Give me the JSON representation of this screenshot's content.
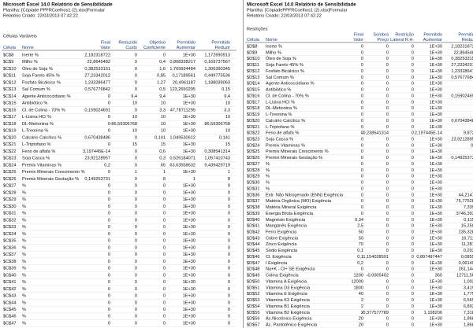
{
  "left": {
    "header": [
      "Microsoft Excel 14.0 Relatório de Sensibilidade",
      "Planilha: [Cópiade PPFRCoelhos1 (2).xlsx]Formular",
      "Relatório Criado: 22/03/2013 07:42:22"
    ],
    "section": "Células Variáveis",
    "columns": [
      "Célula",
      "Nome",
      [
        "Final",
        "Valor"
      ],
      [
        "Reduzido",
        "Custo"
      ],
      [
        "Objetivo",
        "Coeficiente"
      ],
      [
        "Permitido",
        "Aumentar"
      ],
      [
        "Permitido",
        "Reduzir"
      ]
    ],
    "rows": [
      [
        "$C$8",
        "Inerte %",
        "2,182318722",
        "0",
        "0",
        "1E+30",
        "1,172690913"
      ],
      [
        "$C$9",
        "Milho %",
        "22,8645482",
        "0",
        "0,4",
        "0,808338217",
        "0,169737567"
      ],
      [
        "$C$10",
        "Óleo de Soja %",
        "0,382533151",
        "0",
        "1,6",
        "1,769934484",
        "1,306390345"
      ],
      [
        "$C$11",
        "Soja Farelo 45% %",
        "27,23342012",
        "0",
        "0,85",
        "0,17189561",
        "0,449775536"
      ],
      [
        "$C$12",
        "Fosfato Bicálcico %",
        "1,233286477",
        "0",
        "1,27",
        "20,4961187",
        "1,188039063"
      ],
      [
        "$C$13",
        "Sal Comum %",
        "0,576776842",
        "0",
        "0,5",
        "123,2650295",
        "0,15"
      ],
      [
        "$C$14",
        "Agente Anticoccidiano %",
        "0",
        "9,4",
        "9,4",
        "1E+30",
        "9,4"
      ],
      [
        "$C$15",
        "Antibiótico %",
        "0",
        "10",
        "10",
        "1E+30",
        "10"
      ],
      [
        "$C$16",
        "Cl. de Colina - 70% %",
        "0,159024691",
        "0",
        "3,3",
        "47,78711295",
        "3,3"
      ],
      [
        "$C$17",
        "L-Lisina HCl %",
        "0",
        "10",
        "10",
        "1E+30",
        "10"
      ],
      [
        "$C$18",
        "DL-Metionina %",
        "0",
        "-86,59306768",
        "10",
        "1E+30",
        "86,59306768"
      ],
      [
        "$C$19",
        "L-Treonina %",
        "0",
        "10",
        "10",
        "1E+30",
        "10"
      ],
      [
        "$C$20",
        "Calcário Calcítico %",
        "0,670438486",
        "0",
        "0,141",
        "1,049530612",
        "0,141"
      ],
      [
        "$C$21",
        "L-Triptofano %",
        "0",
        "15",
        "15",
        "1E+30",
        "15"
      ],
      [
        "$C$22",
        "Feno de alfafa %",
        "3,197445E-14",
        "0",
        "0,6",
        "1E+30",
        "0,308541314"
      ],
      [
        "$C$23",
        "Soja Casca %",
        "23,92128957",
        "0",
        "0,3",
        "0,526184071",
        "1,057410743"
      ],
      [
        "$C$24",
        "Premix Vitaminas %",
        "0,2",
        "0",
        "65",
        "63,63558632",
        "9,439429719"
      ],
      [
        "$C$25",
        "Premix Minerais Crescimento %",
        "0",
        "1",
        "1",
        "1E+30",
        "1"
      ],
      [
        "$C$26",
        "Premix Minerais Gestação %",
        "0,149253731",
        "0",
        "8",
        "1",
        "8"
      ],
      [
        "$C$27",
        "%",
        "0",
        "0",
        "0",
        "1E+30",
        "0"
      ],
      [
        "$C$28",
        "%",
        "0",
        "0",
        "0",
        "1E+30",
        "0"
      ],
      [
        "$C$29",
        "%",
        "0",
        "0",
        "0",
        "1E+30",
        "0"
      ],
      [
        "$C$30",
        "%",
        "0",
        "0",
        "0",
        "1E+30",
        "0"
      ],
      [
        "$C$31",
        "%",
        "0",
        "0",
        "0",
        "1E+30",
        "0"
      ],
      [
        "$C$32",
        "%",
        "0",
        "0",
        "0",
        "1E+30",
        "0"
      ],
      [
        "$C$33",
        "%",
        "0",
        "0",
        "0",
        "1E+30",
        "0"
      ],
      [
        "$C$34",
        "%",
        "0",
        "0",
        "0",
        "1E+30",
        "0"
      ],
      [
        "$C$35",
        "%",
        "0",
        "0",
        "0",
        "1E+30",
        "0"
      ],
      [
        "$C$36",
        "%",
        "0",
        "0",
        "0",
        "1E+30",
        "0"
      ],
      [
        "$C$37",
        "%",
        "0",
        "0",
        "0",
        "1E+30",
        "0"
      ],
      [
        "$C$38",
        "%",
        "0",
        "0",
        "0",
        "1E+30",
        "0"
      ],
      [
        "$C$39",
        "%",
        "0",
        "0",
        "0",
        "1E+30",
        "0"
      ],
      [
        "$C$40",
        "%",
        "0",
        "0",
        "0",
        "1E+30",
        "0"
      ],
      [
        "$C$41",
        "%",
        "0",
        "0",
        "0",
        "1E+30",
        "0"
      ],
      [
        "$C$42",
        "%",
        "0",
        "0",
        "0",
        "1E+30",
        "0"
      ],
      [
        "$C$43",
        "%",
        "0",
        "0",
        "0",
        "1E+30",
        "0"
      ],
      [
        "$C$44",
        "%",
        "0",
        "0",
        "0",
        "1E+30",
        "0"
      ],
      [
        "$C$45",
        "%",
        "0",
        "0",
        "0",
        "1E+30",
        "0"
      ],
      [
        "$C$46",
        "%",
        "0",
        "0",
        "0",
        "1E+30",
        "0"
      ],
      [
        "$C$47",
        "%",
        "0",
        "0",
        "0",
        "1E+30",
        "0"
      ]
    ]
  },
  "right": {
    "header": [
      "Microsoft Excel 14.0 Relatório de Sensibilidade",
      "Planilha: [CópiadePPFRCoelhos1 (2).xlsx]Formular",
      "Relatório Criado: 22/03/2013 07:42:22"
    ],
    "section": "Restrições",
    "columns": [
      "Célula",
      "Nome",
      [
        "Final",
        "Valor"
      ],
      [
        "Sombra",
        "Preço"
      ],
      [
        "Restrição",
        "Lateral R.H."
      ],
      [
        "Permitido",
        "Aumentar"
      ],
      [
        "Permitido",
        "Reduzir"
      ]
    ],
    "rows": [
      [
        "$D$8",
        "Inerte %",
        "0",
        "0",
        "0",
        "1E+30",
        "2,182318722"
      ],
      [
        "$D$9",
        "Milho %",
        "0",
        "0",
        "0",
        "1E+30",
        "22,8645482"
      ],
      [
        "$D$10",
        "Óleo de Soja %",
        "0",
        "0",
        "0",
        "1E+30",
        "0,382533151"
      ],
      [
        "$D$11",
        "Soja Farelo 45% %",
        "0",
        "0",
        "0",
        "1E+30",
        "27,23342012"
      ],
      [
        "$D$12",
        "Fosfato Bicálcico %",
        "0",
        "0",
        "0",
        "1E+30",
        "1,233286477"
      ],
      [
        "$D$13",
        "Sal Comum %",
        "0",
        "0",
        "0",
        "1E+30",
        "0,576776842"
      ],
      [
        "$D$14",
        "Agente Anticoccidiano %",
        "0",
        "0",
        "0",
        "1E+30",
        "0"
      ],
      [
        "$D$15",
        "Antibiótico %",
        "0",
        "0",
        "0",
        "1E+30",
        "0"
      ],
      [
        "$D$16",
        "Cl. de Colina - 70% %",
        "0",
        "0",
        "0",
        "1E+30",
        "0,159024691"
      ],
      [
        "$D$17",
        "L-Lisina HCl %",
        "0",
        "0",
        "0",
        "1E+30",
        "0"
      ],
      [
        "$D$18",
        "DL-Metionina %",
        "0",
        "0",
        "0",
        "1E+30",
        "0"
      ],
      [
        "$D$19",
        "L-Treonina %",
        "0",
        "0",
        "0",
        "1E+30",
        "0"
      ],
      [
        "$D$20",
        "Calcário Calcítico %",
        "0",
        "0",
        "0",
        "1E+30",
        "0,670438486"
      ],
      [
        "$D$21",
        "L-Triptofano %",
        "0",
        "0",
        "0",
        "1E+30",
        "0"
      ],
      [
        "$D$22",
        "Feno de alfafa %",
        "0",
        "-0,238541314",
        "0",
        "2,197445E-14",
        "9,8723"
      ],
      [
        "$D$23",
        "Soja Casca %",
        "0",
        "0",
        "0",
        "1E+30",
        "23,92128957"
      ],
      [
        "$D$24",
        "Premix Vitaminas %",
        "0",
        "0",
        "0",
        "1E+30",
        "0,2"
      ],
      [
        "$D$25",
        "Premix Minerais Crescimento %",
        "0",
        "0",
        "0",
        "1E+30",
        "0"
      ],
      [
        "$D$26",
        "Premix Minerais Gestação %",
        "0",
        "0",
        "0",
        "1E+30",
        "0,149253731"
      ],
      [
        "$D$27",
        "%",
        "0",
        "0",
        "0",
        "1E+30",
        "0"
      ],
      [
        "$D$28",
        "%",
        "0",
        "0",
        "0",
        "1E+30",
        "0"
      ],
      [
        "$D$29",
        "%",
        "0",
        "0",
        "0",
        "1E+30",
        "0"
      ],
      [
        "$D$30",
        "%",
        "0",
        "0",
        "0",
        "1E+30",
        "0"
      ],
      [
        "$D$31",
        "%",
        "0",
        "0",
        "0",
        "1E+30",
        "0"
      ],
      [
        "$D$36",
        "Extr. Não Nitrogenado (ENN) Exigência",
        "0",
        "0",
        "0",
        "1E+30",
        "44,21478"
      ],
      [
        "$D$37",
        "Matéria Orgânica (MO) Exigência",
        "0",
        "0",
        "0",
        "1E+30",
        "75,775285"
      ],
      [
        "$D$38",
        "Matéria Mineral Exigência",
        "0",
        "0",
        "0",
        "1E+30",
        "7,3391"
      ],
      [
        "$D$39",
        "Energia Bruta Exigência",
        "0",
        "0",
        "0",
        "1E+30",
        "3746,3932"
      ],
      [
        "$D$40",
        "Magnésio Exigência",
        "0,34",
        "0",
        "0",
        "1E+30",
        "0,1152"
      ],
      [
        "$D$41",
        "Manganês Exigência",
        "2,5",
        "0",
        "0",
        "1E+30",
        "15,2508"
      ],
      [
        "$D$42",
        "Ferro Exigência",
        "50",
        "0",
        "0",
        "1E+30",
        "235,3287"
      ],
      [
        "$D$43",
        "Cobre Exigência",
        "50",
        "0",
        "0",
        "1E+30",
        "16,7115"
      ],
      [
        "$D$44",
        "Zinco Exigência",
        "70",
        "0",
        "0",
        "1E+30",
        "11,2879"
      ],
      [
        "$D$45",
        "Sódio Exigência",
        "0,1",
        "0",
        "0",
        "1E+30",
        "0,2038"
      ],
      [
        "$D$46",
        "Cl. Exigência",
        "0,1",
        "-1,154028591",
        "0",
        "0,807497447",
        "0,08558"
      ],
      [
        "$D$47",
        "I Exigência",
        "0,2",
        "0",
        "0",
        "1E+30",
        "0,061402"
      ],
      [
        "$D$48",
        "Na+K - Cl+ SE Exigência",
        "0",
        "0",
        "0",
        "1E+30",
        "261,1445"
      ],
      [
        "$D$49",
        "Colina Exigência",
        "1200",
        "-0,0005402",
        "0",
        "360",
        "12711,506"
      ],
      [
        "$D$50",
        "Vitamina A Exigência",
        "12000",
        "0",
        "0",
        "1E+30",
        "1,0023"
      ],
      [
        "$D$51",
        "Vitamina D3 Exigência",
        "1800",
        "0",
        "0",
        "1E+30",
        "3,4198"
      ],
      [
        "$D$52",
        "Vitamina E Exigência",
        "40",
        "0",
        "0",
        "1E+30",
        "1,7758"
      ],
      [
        "$D$53",
        "Vitamina K3 Exigência",
        "2",
        "0",
        "0",
        "1E+30",
        "6,5652"
      ],
      [
        "$D$54",
        "Vitamina B1 Exigência",
        "2",
        "0",
        "0",
        "1E+30",
        "6,8920"
      ],
      [
        "$D$55",
        "Vitamina B2 Exigência",
        "2",
        "-0,377577789",
        "0",
        "1,108206",
        "7,3181"
      ],
      [
        "$D$56",
        "Ác.Nicotínico Exigência",
        "20",
        "0",
        "0",
        "1E+30",
        "1,8681"
      ],
      [
        "$D$57",
        "Ác. Pantotênico Exigência",
        "20",
        "0",
        "0",
        "1E+30",
        "1,8681"
      ]
    ]
  }
}
